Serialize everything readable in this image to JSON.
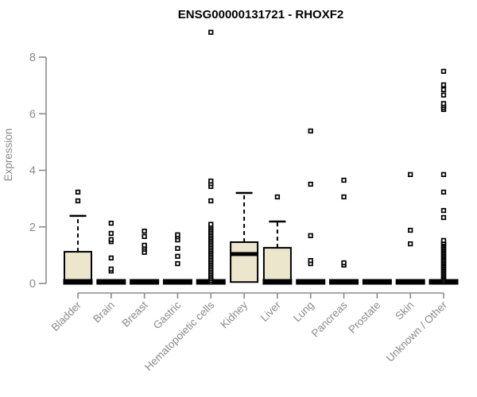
{
  "chart_data": {
    "type": "boxplot",
    "title": "ENSG00000131721 - RHOXF2",
    "ylabel": "Expression",
    "xlabel": "",
    "ylim": [
      0,
      9
    ],
    "yticks": [
      0,
      2,
      4,
      6,
      8
    ],
    "grid": false,
    "legend": "none",
    "colors": {
      "box_fill": "#ece7cc",
      "box_stroke": "#000000",
      "axis": "#8a8a8a",
      "title_color": "#000000",
      "point_fill": "#ffffff",
      "background": "#ffffff"
    },
    "categories": [
      "Bladder",
      "Brain",
      "Breast",
      "Gastric",
      "Hematopoietic cells",
      "Kidney",
      "Liver",
      "Lung",
      "Pancreas",
      "Prostate",
      "Skin",
      "Unknown / Other"
    ],
    "boxes": [
      {
        "category": "Bladder",
        "q1": 0,
        "median": 0,
        "q3": 1.12,
        "whisker_low": 0,
        "whisker_high": 2.39,
        "outliers": [
          2.92,
          3.23
        ]
      },
      {
        "category": "Brain",
        "q1": 0,
        "median": 0,
        "q3": 0,
        "whisker_low": 0,
        "whisker_high": 0,
        "outliers": [
          0.44,
          0.51,
          0.9,
          1.48,
          1.55,
          1.77,
          2.13
        ]
      },
      {
        "category": "Breast",
        "q1": 0,
        "median": 0,
        "q3": 0,
        "whisker_low": 0,
        "whisker_high": 0,
        "outliers": [
          1.1,
          1.21,
          1.28,
          1.35,
          1.66,
          1.85
        ]
      },
      {
        "category": "Gastric",
        "q1": 0,
        "median": 0,
        "q3": 0,
        "whisker_low": 0,
        "whisker_high": 0,
        "outliers": [
          0.7,
          0.96,
          1.24,
          1.54,
          1.65,
          1.72
        ]
      },
      {
        "category": "Hematopoietic cells",
        "q1": 0,
        "median": 0,
        "q3": 0,
        "whisker_low": 0,
        "whisker_high": 0,
        "outliers": [
          0.05,
          0.11,
          0.17,
          0.23,
          0.29,
          0.35,
          0.41,
          0.47,
          0.53,
          0.59,
          0.65,
          0.71,
          0.77,
          0.83,
          0.89,
          0.95,
          1.01,
          1.07,
          1.13,
          1.19,
          1.25,
          1.31,
          1.37,
          1.43,
          1.49,
          1.55,
          1.61,
          1.67,
          1.73,
          1.79,
          1.85,
          1.91,
          1.97,
          2.03,
          2.09,
          2.92,
          3.43,
          3.53,
          3.62,
          8.88
        ]
      },
      {
        "category": "Kidney",
        "q1": 0.05,
        "median": 1.04,
        "q3": 1.46,
        "whisker_low": 0.05,
        "whisker_high": 3.2,
        "outliers": []
      },
      {
        "category": "Liver",
        "q1": 0,
        "median": 0,
        "q3": 1.26,
        "whisker_low": 0,
        "whisker_high": 2.19,
        "outliers": [
          3.06
        ]
      },
      {
        "category": "Lung",
        "q1": 0,
        "median": 0,
        "q3": 0,
        "whisker_low": 0,
        "whisker_high": 0,
        "outliers": [
          0.7,
          0.81,
          1.69,
          3.51,
          5.39
        ]
      },
      {
        "category": "Pancreas",
        "q1": 0,
        "median": 0,
        "q3": 0,
        "whisker_low": 0,
        "whisker_high": 0,
        "outliers": [
          0.65,
          0.73,
          3.06,
          3.65
        ]
      },
      {
        "category": "Prostate",
        "q1": 0,
        "median": 0,
        "q3": 0,
        "whisker_low": 0,
        "whisker_high": 0,
        "outliers": []
      },
      {
        "category": "Skin",
        "q1": 0,
        "median": 0,
        "q3": 0,
        "whisker_low": 0,
        "whisker_high": 0,
        "outliers": [
          1.4,
          1.88,
          3.85
        ]
      },
      {
        "category": "Unknown / Other",
        "q1": 0,
        "median": 0,
        "q3": 0,
        "whisker_low": 0,
        "whisker_high": 0,
        "outliers": [
          0.05,
          0.1,
          0.15,
          0.2,
          0.25,
          0.3,
          0.35,
          0.4,
          0.45,
          0.5,
          0.55,
          0.6,
          0.65,
          0.7,
          0.75,
          0.8,
          0.85,
          0.9,
          0.95,
          1.0,
          1.05,
          1.1,
          1.15,
          1.2,
          1.25,
          1.3,
          1.35,
          1.4,
          1.45,
          1.52,
          2.33,
          2.58,
          3.23,
          3.85,
          6.15,
          6.22,
          6.29,
          6.36,
          6.66,
          6.85,
          7.02,
          7.5
        ]
      }
    ]
  }
}
